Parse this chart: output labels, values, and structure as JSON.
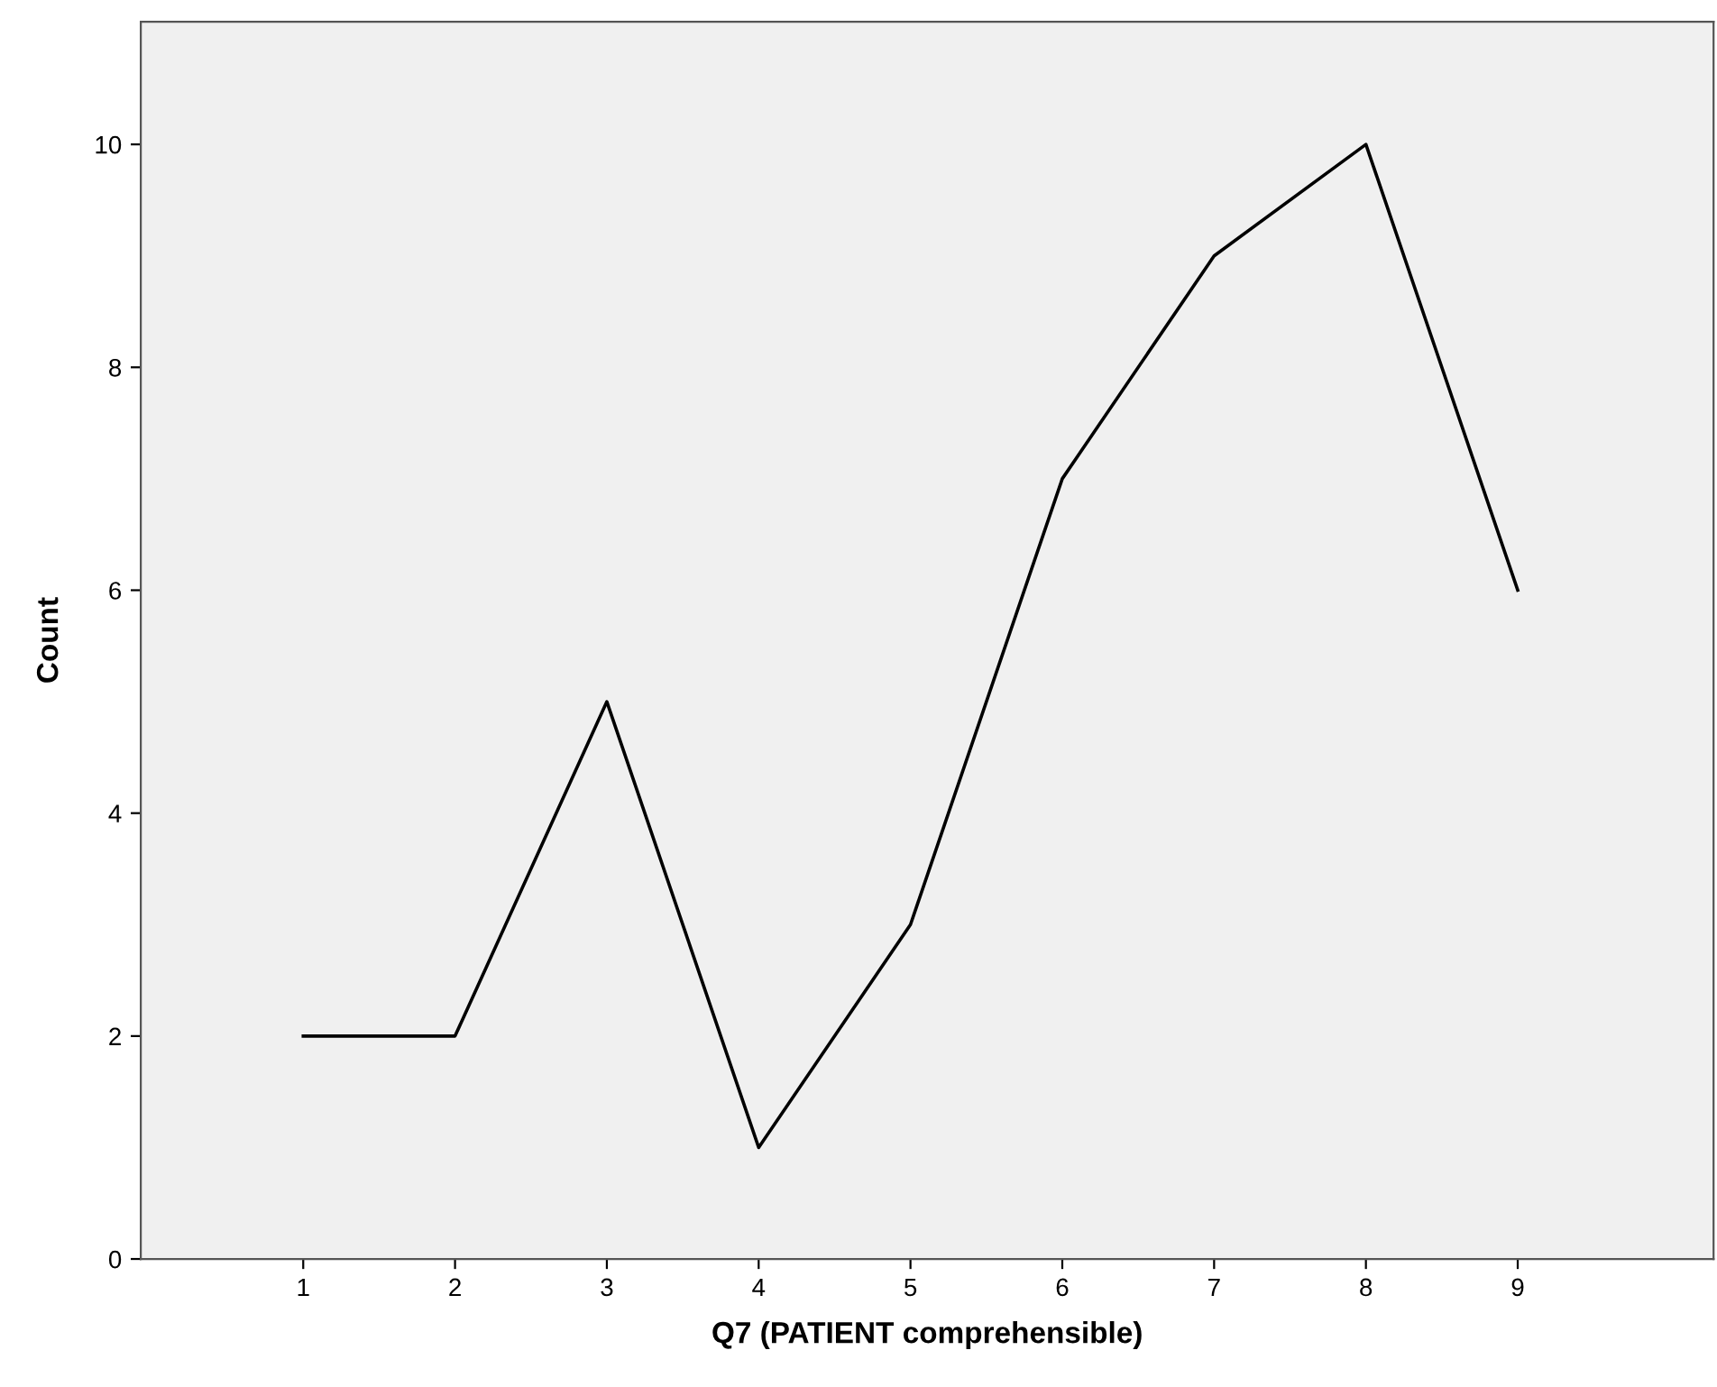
{
  "chart_data": {
    "type": "line",
    "xlabel": "Q7 (PATIENT comprehensible)",
    "ylabel": "Count",
    "categories": [
      "1",
      "2",
      "3",
      "4",
      "5",
      "6",
      "7",
      "8",
      "9"
    ],
    "series": [
      {
        "color": "#000000",
        "values": [
          2,
          2,
          5,
          1,
          3,
          7,
          9,
          10,
          6
        ]
      }
    ],
    "ylim": [
      0,
      11.1
    ],
    "yticks": [
      0,
      2,
      4,
      6,
      8,
      10
    ],
    "grid": false,
    "marker": "none",
    "line_style": "solid"
  }
}
